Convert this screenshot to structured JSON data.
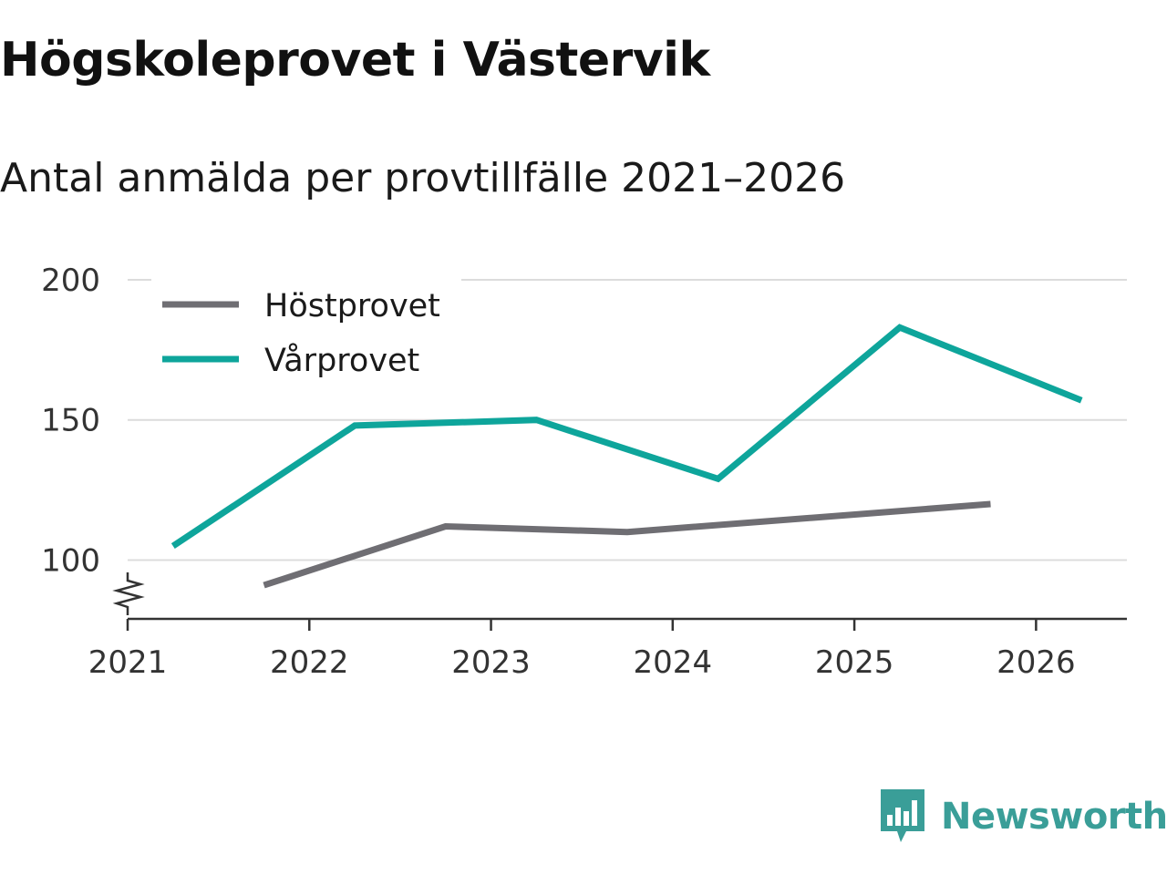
{
  "title": "Högskoleprovet i Västervik",
  "subtitle": "Antal anmälda per provtillfälle 2021–2026",
  "brand": {
    "name": "Newsworthy",
    "icon": "newsworthy-logo-icon",
    "color": "#3a9e98"
  },
  "chart_data": {
    "type": "line",
    "title": "Högskoleprovet i Västervik",
    "subtitle": "Antal anmälda per provtillfälle 2021–2026",
    "xlabel": "",
    "ylabel": "",
    "x_ticks": [
      "2021",
      "2022",
      "2023",
      "2024",
      "2025",
      "2026"
    ],
    "y_ticks": [
      100,
      150,
      200
    ],
    "ylim": [
      79,
      200
    ],
    "y_axis_break": true,
    "grid": true,
    "legend_position": "top-left",
    "series": [
      {
        "name": "Höstprovet",
        "color": "#6f6e73",
        "points": [
          {
            "x": 2021.75,
            "y": 91
          },
          {
            "x": 2022.75,
            "y": 112
          },
          {
            "x": 2023.75,
            "y": 110
          },
          {
            "x": 2025.75,
            "y": 120
          }
        ]
      },
      {
        "name": "Vårprovet",
        "color": "#0ea59b",
        "points": [
          {
            "x": 2021.25,
            "y": 105
          },
          {
            "x": 2022.25,
            "y": 148
          },
          {
            "x": 2023.25,
            "y": 150
          },
          {
            "x": 2024.25,
            "y": 129
          },
          {
            "x": 2025.25,
            "y": 183
          },
          {
            "x": 2026.25,
            "y": 157
          }
        ]
      }
    ]
  }
}
